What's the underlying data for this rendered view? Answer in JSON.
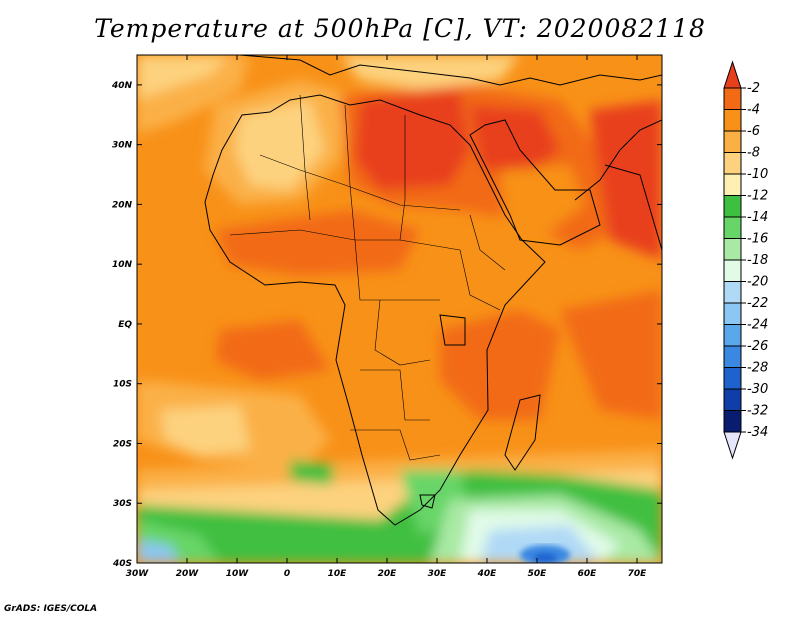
{
  "title": "Temperature at 500hPa [C], VT: 2020082118",
  "credit": "GrADS: IGES/COLA",
  "map": {
    "lon_range": [
      -30,
      75
    ],
    "lat_range": [
      -40,
      45
    ],
    "x_ticks": [
      "30W",
      "20W",
      "10W",
      "0",
      "10E",
      "20E",
      "30E",
      "40E",
      "50E",
      "60E",
      "70E"
    ],
    "x_tick_values": [
      -30,
      -20,
      -10,
      0,
      10,
      20,
      30,
      40,
      50,
      60,
      70
    ],
    "y_ticks": [
      "40S",
      "30S",
      "20S",
      "10S",
      "EQ",
      "10N",
      "20N",
      "30N",
      "40N"
    ],
    "y_tick_values": [
      -40,
      -30,
      -20,
      -10,
      0,
      10,
      20,
      30,
      40
    ]
  },
  "colorbar": {
    "labels": [
      "-2",
      "-4",
      "-6",
      "-8",
      "-10",
      "-12",
      "-14",
      "-16",
      "-18",
      "-20",
      "-22",
      "-24",
      "-26",
      "-28",
      "-30",
      "-32",
      "-34"
    ],
    "colors": [
      "#e8401c",
      "#f26a16",
      "#f89118",
      "#fbb046",
      "#fdd27e",
      "#fef0b2",
      "#3fbf3f",
      "#67d567",
      "#a9e9a4",
      "#e1fbe8",
      "#b0d9f6",
      "#8cc6f3",
      "#5aa7ec",
      "#3a88e2",
      "#1e62ce",
      "#0f3ea9",
      "#081d70"
    ],
    "top_color": "#e8401c",
    "bottom_color": "#e6e6fa"
  }
}
